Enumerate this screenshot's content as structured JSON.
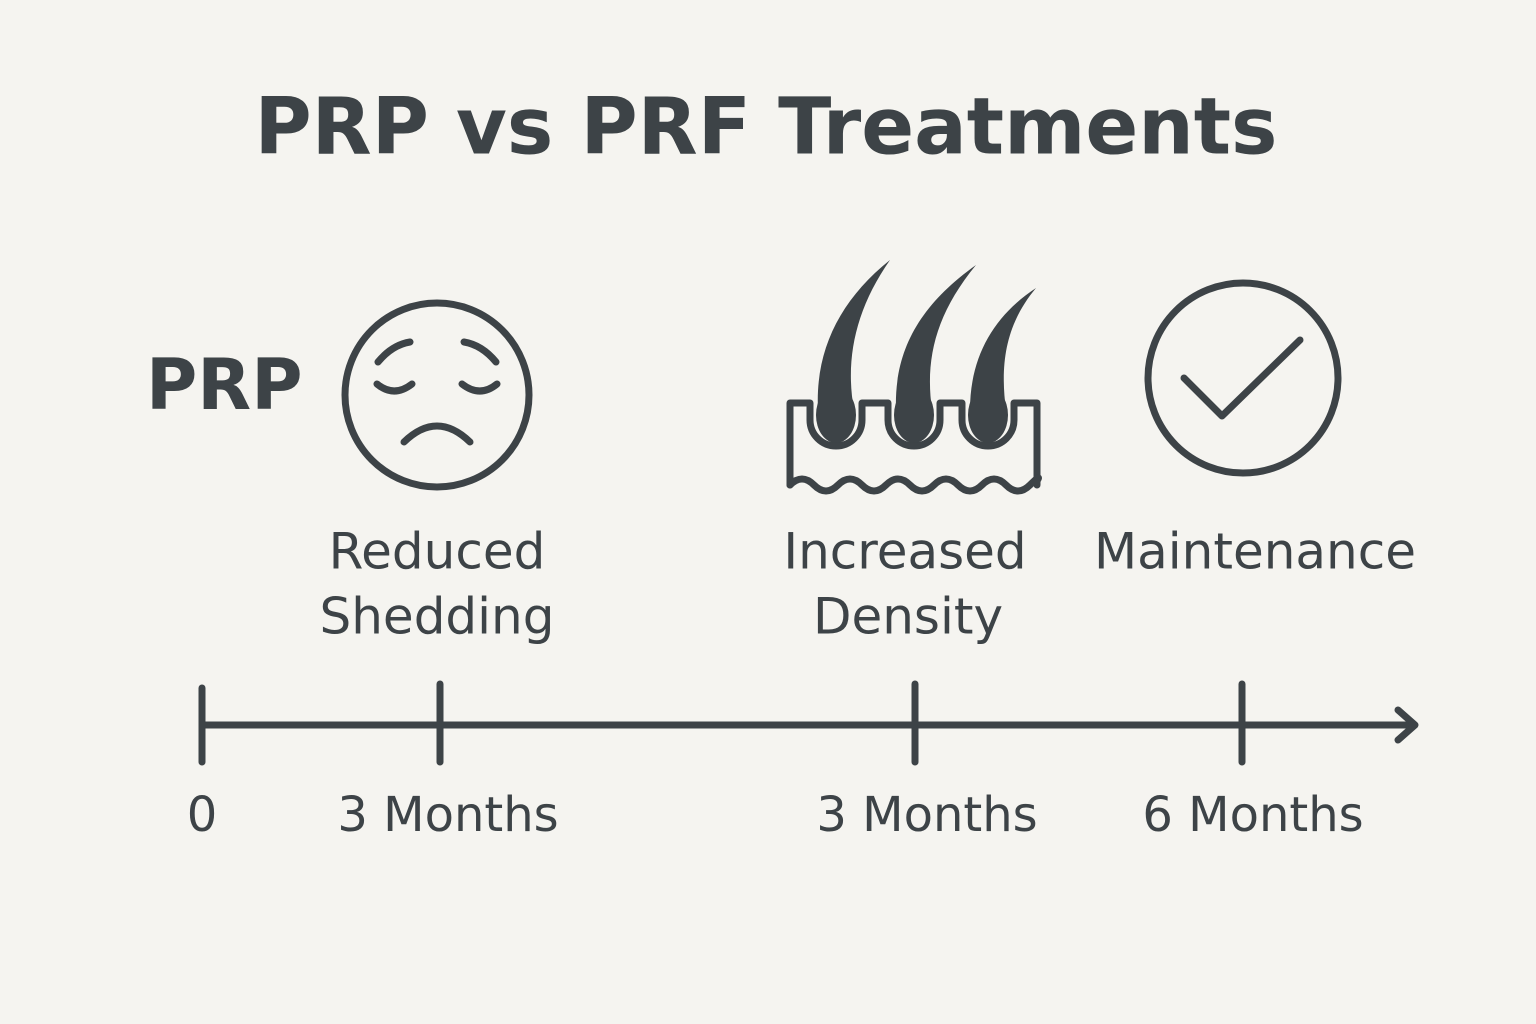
{
  "header": {
    "title": "PRP vs PRF Treatments"
  },
  "row_label": "PRP",
  "milestones": [
    {
      "lines": [
        "Reduced",
        "Shedding"
      ]
    },
    {
      "lines": [
        "Increased",
        "Density"
      ]
    },
    {
      "lines": [
        "Maintenance"
      ]
    }
  ],
  "timeline": {
    "ticks": [
      "0",
      "3 Months",
      "3 Months",
      "6 Months"
    ]
  }
}
